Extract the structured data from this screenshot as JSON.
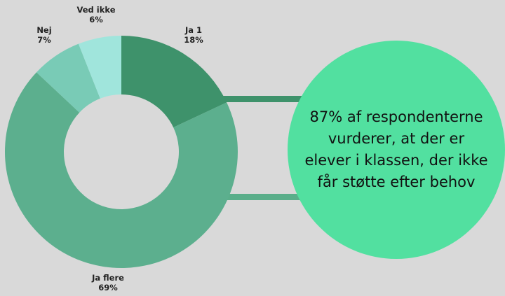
{
  "chart_data": {
    "type": "donut",
    "slices": [
      {
        "name": "Ja 1",
        "value": 18,
        "label": "18%",
        "color": "#3e926b"
      },
      {
        "name": "Ja flere",
        "value": 69,
        "label": "69%",
        "color": "#5caf8e"
      },
      {
        "name": "Nej",
        "value": 7,
        "label": "7%",
        "color": "#79cbb6"
      },
      {
        "name": "Ved ikke",
        "value": 6,
        "label": "6%",
        "color": "#a0e5dc"
      }
    ]
  },
  "callout": {
    "text": "87% af respondenterne vurderer, at der er elever i klassen, der ikke får støtte efter behov",
    "color": "#52e0a0",
    "connector_color": "#5aae8a"
  }
}
